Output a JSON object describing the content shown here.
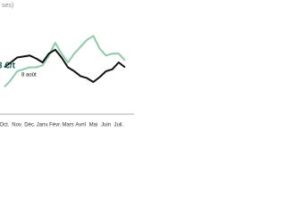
{
  "chart_data": {
    "type": "line",
    "title": "ses)",
    "annotations": [
      "3 €/t",
      "8 août"
    ],
    "categories": [
      "Oct.",
      null,
      "Nov.",
      null,
      "Déc.",
      null,
      "Janv.",
      null,
      "Févr.",
      null,
      "Mars",
      null,
      "Avril",
      null,
      "Mai",
      null,
      "Juin",
      null,
      "Juil.",
      null
    ],
    "series": [
      {
        "color": "#111111",
        "values": [
          45,
          50,
          55,
          56,
          57,
          54,
          50,
          59,
          63,
          55,
          45,
          41,
          36,
          34,
          30,
          35,
          41,
          43,
          50,
          45
        ]
      },
      {
        "color": "#8fcaa9",
        "values": [
          25,
          32,
          41,
          43,
          45,
          45,
          47,
          57,
          70,
          59,
          50,
          59,
          66,
          73,
          77,
          64,
          57,
          59,
          59,
          52
        ]
      }
    ],
    "ylim": [
      0,
      100
    ]
  }
}
